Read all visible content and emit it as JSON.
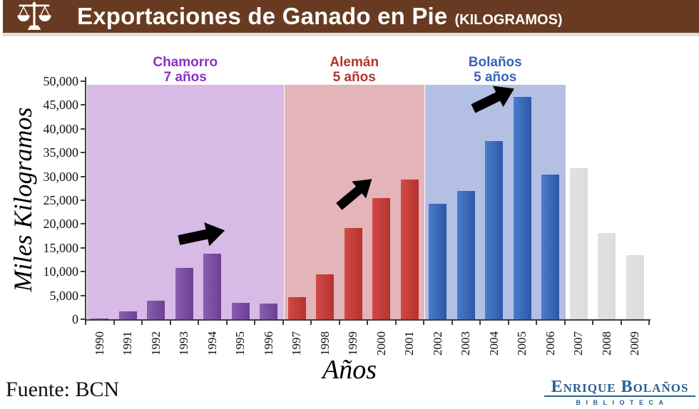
{
  "header": {
    "title": "Exportaciones de Ganado en Pie",
    "subtitle": "(KILOGRAMOS)",
    "background_color": "#693a22",
    "icon": "balance-scale-icon"
  },
  "chart_data": {
    "type": "bar",
    "title": "Exportaciones de Ganado en Pie (Kilogramos)",
    "xlabel": "Años",
    "ylabel": "Miles Kilogramos",
    "ylim": [
      0,
      50000
    ],
    "ytick_step": 5000,
    "grid": false,
    "legend": "none",
    "categories": [
      1990,
      1991,
      1992,
      1993,
      1994,
      1995,
      1996,
      1997,
      1998,
      1999,
      2000,
      2001,
      2002,
      2003,
      2004,
      2005,
      2006,
      2007,
      2008,
      2009
    ],
    "values": [
      150,
      1600,
      3900,
      10800,
      13700,
      3500,
      3300,
      4700,
      9500,
      19200,
      25400,
      29400,
      24300,
      26900,
      37400,
      46700,
      30400,
      31800,
      18100,
      13500
    ],
    "periods": [
      {
        "name": "Chamorro",
        "duration_label": "7 años",
        "start_year": 1990,
        "end_year": 1996,
        "band_color": "#d8bae7",
        "bar_color_from": "#8a5fae",
        "bar_color_to": "#6b3f94",
        "label_color": "#8e2fc4"
      },
      {
        "name": "Alemán",
        "duration_label": "5 años",
        "start_year": 1997,
        "end_year": 2001,
        "band_color": "#e3b4b8",
        "bar_color_from": "#d14a45",
        "bar_color_to": "#b5332f",
        "label_color": "#b8322e"
      },
      {
        "name": "Bolaños",
        "duration_label": "5 años",
        "start_year": 2002,
        "end_year": 2006,
        "band_color": "#b3bfe3",
        "bar_color_from": "#4a7ccc",
        "bar_color_to": "#2c58a6",
        "label_color": "#3a62b8"
      }
    ],
    "no_period_bar_color": "#dcdcdc",
    "annotations": [
      {
        "type": "block-arrow",
        "color": "#000000",
        "points_toward": "1994 peak"
      },
      {
        "type": "block-arrow",
        "color": "#000000",
        "points_toward": "2001 peak"
      },
      {
        "type": "block-arrow",
        "color": "#000000",
        "points_toward": "2005 peak"
      }
    ]
  },
  "footer": {
    "source": "Fuente: BCN",
    "logo": {
      "line1": "Enrique Bolaños",
      "line2": "Biblioteca"
    }
  }
}
